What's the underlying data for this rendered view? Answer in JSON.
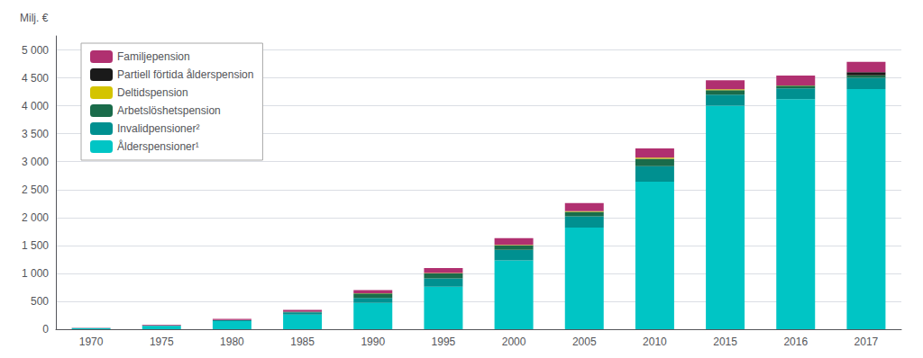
{
  "chart_data": {
    "type": "bar",
    "stacked": true,
    "ylabel": "Milj. €",
    "categories": [
      "1970",
      "1975",
      "1980",
      "1985",
      "1990",
      "1995",
      "2000",
      "2005",
      "2010",
      "2015",
      "2016",
      "2017"
    ],
    "series": [
      {
        "name": "Ålderspensioner¹",
        "color": "#00C5C5",
        "values": [
          18,
          60,
          145,
          260,
          470,
          760,
          1230,
          1820,
          2640,
          4000,
          4120,
          4300
        ]
      },
      {
        "name": "Invalidpensioner²",
        "color": "#009090",
        "values": [
          3,
          10,
          20,
          40,
          90,
          150,
          190,
          200,
          280,
          200,
          190,
          200
        ]
      },
      {
        "name": "Arbetslöshetspension",
        "color": "#1A6B4A",
        "values": [
          0,
          0,
          0,
          15,
          80,
          90,
          80,
          80,
          130,
          80,
          50,
          40
        ]
      },
      {
        "name": "Deltidspension",
        "color": "#D4C400",
        "values": [
          0,
          0,
          0,
          0,
          5,
          5,
          10,
          15,
          20,
          15,
          5,
          5
        ]
      },
      {
        "name": "Partiell förtida ålderspension",
        "color": "#1a1a1a",
        "values": [
          0,
          0,
          0,
          0,
          0,
          0,
          0,
          0,
          0,
          0,
          0,
          55
        ]
      },
      {
        "name": "Familjepension",
        "color": "#B03070",
        "values": [
          4,
          10,
          20,
          30,
          55,
          90,
          120,
          145,
          165,
          160,
          175,
          185
        ]
      }
    ],
    "ylim": [
      0,
      5250
    ],
    "yticks": [
      0,
      500,
      {
        "value": 1000,
        "label": "1 000"
      },
      {
        "value": 1500,
        "label": "1 500"
      },
      {
        "value": 2000,
        "label": "2 000"
      },
      {
        "value": 2500,
        "label": "2 500"
      },
      {
        "value": 3000,
        "label": "3 000"
      },
      {
        "value": 3500,
        "label": "3 500"
      },
      {
        "value": 4000,
        "label": "4 000"
      },
      {
        "value": 4500,
        "label": "4 500"
      },
      {
        "value": 5000,
        "label": "5 000"
      }
    ],
    "grid": true,
    "legend": "upper left"
  }
}
